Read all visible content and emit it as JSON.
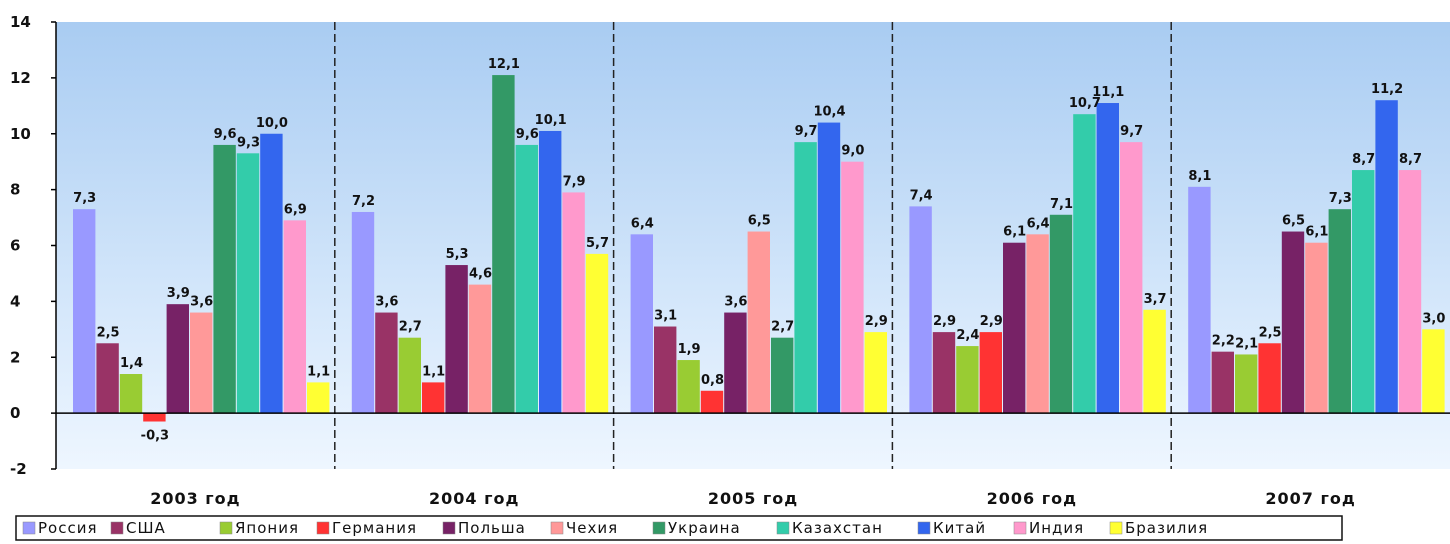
{
  "chart_data": {
    "type": "bar",
    "categories": [
      "2003 год",
      "2004 год",
      "2005 год",
      "2006 год",
      "2007 год"
    ],
    "ylim": [
      -2,
      14
    ],
    "yticks": [
      -2,
      0,
      2,
      4,
      6,
      8,
      10,
      12,
      14
    ],
    "grid": false,
    "legend_position": "bottom",
    "series": [
      {
        "name": "Россия",
        "color": "#9999FF",
        "values": [
          7.3,
          7.2,
          6.4,
          7.4,
          8.1
        ],
        "labels": [
          "7,3",
          "7,2",
          "6,4",
          "7,4",
          "8,1"
        ]
      },
      {
        "name": "США",
        "color": "#993366",
        "values": [
          2.5,
          3.6,
          3.1,
          2.9,
          2.2
        ],
        "labels": [
          "2,5",
          "3,6",
          "3,1",
          "2,9",
          "2,2"
        ]
      },
      {
        "name": "Япония",
        "color": "#99CC33",
        "values": [
          1.4,
          2.7,
          1.9,
          2.4,
          2.1
        ],
        "labels": [
          "1,4",
          "2,7",
          "1,9",
          "2,4",
          "2,1"
        ]
      },
      {
        "name": "Германия",
        "color": "#FF3333",
        "values": [
          -0.3,
          1.1,
          0.8,
          2.9,
          2.5
        ],
        "labels": [
          "-0,3",
          "1,1",
          "0,8",
          "2,9",
          "2,5"
        ]
      },
      {
        "name": "Польша",
        "color": "#772266",
        "values": [
          3.9,
          5.3,
          3.6,
          6.1,
          6.5
        ],
        "labels": [
          "3,9",
          "5,3",
          "3,6",
          "6,1",
          "6,5"
        ]
      },
      {
        "name": "Чехия",
        "color": "#FF9999",
        "values": [
          3.6,
          4.6,
          6.5,
          6.4,
          6.1
        ],
        "labels": [
          "3,6",
          "4,6",
          "6,5",
          "6,4",
          "6,1"
        ]
      },
      {
        "name": "Украина",
        "color": "#339966",
        "values": [
          9.6,
          12.1,
          2.7,
          7.1,
          7.3
        ],
        "labels": [
          "9,6",
          "12,1",
          "2,7",
          "7,1",
          "7,3"
        ]
      },
      {
        "name": "Казахстан",
        "color": "#33CCAA",
        "values": [
          9.3,
          9.6,
          9.7,
          10.7,
          8.7
        ],
        "labels": [
          "9,3",
          "9,6",
          "9,7",
          "10,7",
          "8,7"
        ]
      },
      {
        "name": "Китай",
        "color": "#3366EE",
        "values": [
          10.0,
          10.1,
          10.4,
          11.1,
          11.2
        ],
        "labels": [
          "10,0",
          "10,1",
          "10,4",
          "11,1",
          "11,2"
        ]
      },
      {
        "name": "Индия",
        "color": "#FF99CC",
        "values": [
          6.9,
          7.9,
          9.0,
          9.7,
          8.7
        ],
        "labels": [
          "6,9",
          "7,9",
          "9,0",
          "9,7",
          "8,7"
        ]
      },
      {
        "name": "Бразилия",
        "color": "#FFFF33",
        "values": [
          1.1,
          5.7,
          2.9,
          3.7,
          3.0
        ],
        "labels": [
          "1,1",
          "5,7",
          "2,9",
          "3,7",
          "3,0"
        ]
      }
    ]
  }
}
